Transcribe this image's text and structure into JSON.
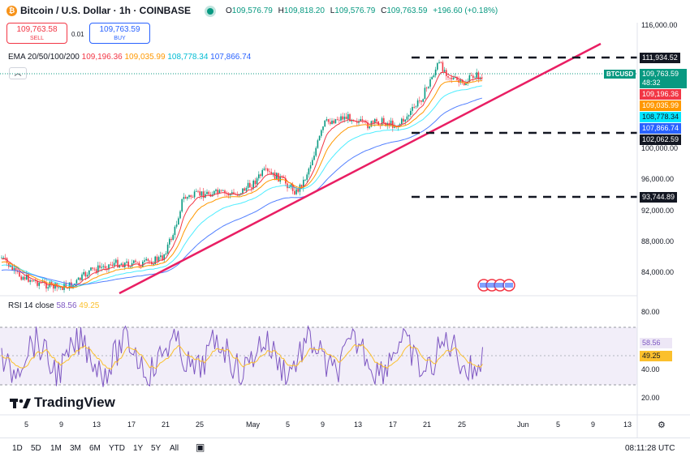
{
  "header": {
    "symbol": "Bitcoin / U.S. Dollar · 1h · COINBASE",
    "open_key": "O",
    "open": "109,576.79",
    "high_key": "H",
    "high": "109,818.20",
    "low_key": "L",
    "low": "109,576.79",
    "close_key": "C",
    "close": "109,763.59",
    "change": "+196.60 (+0.18%)"
  },
  "trade": {
    "sell_price": "109,763.58",
    "sell_label": "SELL",
    "spread": "0.01",
    "buy_price": "109,763.59",
    "buy_label": "BUY"
  },
  "ema_legend": {
    "label": "EMA 20/50/100/200",
    "v20": "109,196.36",
    "v50": "109,035.99",
    "v100": "108,778.34",
    "v200": "107,866.74"
  },
  "rsi_legend": {
    "label": "RSI 14 close",
    "v1": "58.56",
    "v2": "49.25"
  },
  "price_axis": [
    "116,000.00",
    "100,000.00",
    "96,000.00",
    "92,000.00",
    "88,000.00",
    "84,000.00"
  ],
  "price_tags": {
    "level1": "111,934.52",
    "current": "109,763.59",
    "countdown": "48:32",
    "symbol": "BTCUSD",
    "ema20": "109,196.36",
    "ema50": "109,035.99",
    "ema100": "108,778.34",
    "ema200": "107,866.74",
    "level2": "102,062.59",
    "level3": "93,744.89"
  },
  "rsi_axis": [
    "80.00",
    "40.00",
    "20.00"
  ],
  "rsi_tags": {
    "rsi": "58.56",
    "ma": "49.25"
  },
  "time_axis": [
    "5",
    "9",
    "13",
    "17",
    "21",
    "25",
    "May",
    "5",
    "9",
    "13",
    "17",
    "21",
    "25",
    "Jun",
    "5",
    "9",
    "13"
  ],
  "ranges": [
    "1D",
    "5D",
    "1M",
    "3M",
    "6M",
    "YTD",
    "1Y",
    "5Y",
    "All"
  ],
  "clock": "08:11:28 UTC",
  "logo": "TradingView",
  "colors": {
    "up": "#089981",
    "down": "#f23645",
    "ema20": "#f23645",
    "ema50": "#ff9800",
    "ema100": "#00bcd4",
    "ema200": "#2962ff",
    "trendline": "#e91e63",
    "rsi": "#7e57c2",
    "rsi_ma": "#fbc02d"
  },
  "icons": {
    "coin": "bitcoin-icon",
    "collapse": "chevron-up-icon",
    "gear": "settings-icon",
    "calendar": "calendar-range-icon"
  }
}
